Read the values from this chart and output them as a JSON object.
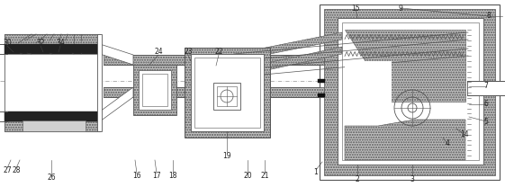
{
  "bg_color": "#ffffff",
  "lc": "#555555",
  "gray_hatch": "#c0c0c0",
  "dark": "#222222",
  "fig_w": 5.61,
  "fig_h": 2.08,
  "dpi": 100
}
